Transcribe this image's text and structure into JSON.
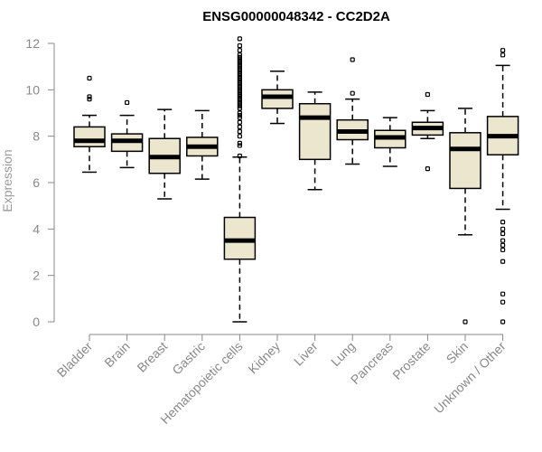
{
  "chart_data": {
    "type": "boxplot",
    "title": "ENSG00000048342 - CC2D2A",
    "ylabel": "Expression",
    "xlabel": "",
    "ylim": [
      0,
      12
    ],
    "yticks": [
      0,
      2,
      4,
      6,
      8,
      10,
      12
    ],
    "box_fill": "#ede6cf",
    "series": [
      {
        "name": "Bladder",
        "min": 6.45,
        "q1": 7.55,
        "median": 7.8,
        "q3": 8.4,
        "max": 8.9,
        "outliers": [
          9.6,
          9.7,
          10.5
        ]
      },
      {
        "name": "Brain",
        "min": 6.65,
        "q1": 7.35,
        "median": 7.8,
        "q3": 8.1,
        "max": 8.9,
        "outliers": [
          9.45
        ]
      },
      {
        "name": "Breast",
        "min": 5.3,
        "q1": 6.4,
        "median": 7.1,
        "q3": 7.9,
        "max": 9.15,
        "outliers": []
      },
      {
        "name": "Gastric",
        "min": 6.15,
        "q1": 7.15,
        "median": 7.55,
        "q3": 7.95,
        "max": 9.1,
        "outliers": []
      },
      {
        "name": "Hematopoietic cells",
        "min": 0.0,
        "q1": 2.7,
        "median": 3.5,
        "q3": 4.5,
        "max": 7.1,
        "outliers": [
          7.15,
          7.6,
          7.7,
          8.0,
          8.2,
          8.4,
          8.6,
          8.8,
          8.9,
          9.0,
          9.2,
          9.3,
          9.4,
          9.5,
          9.6,
          9.7,
          9.8,
          9.9,
          10.0,
          10.1,
          10.2,
          10.3,
          10.4,
          10.5,
          10.6,
          10.7,
          10.8,
          10.9,
          11.0,
          11.1,
          11.2,
          11.3,
          11.4,
          11.5,
          11.7,
          11.9,
          12.2
        ]
      },
      {
        "name": "Kidney",
        "min": 8.55,
        "q1": 9.2,
        "median": 9.7,
        "q3": 10.0,
        "max": 10.8,
        "outliers": []
      },
      {
        "name": "Liver",
        "min": 5.7,
        "q1": 7.0,
        "median": 8.8,
        "q3": 9.4,
        "max": 9.9,
        "outliers": []
      },
      {
        "name": "Lung",
        "min": 6.8,
        "q1": 7.85,
        "median": 8.2,
        "q3": 8.7,
        "max": 9.6,
        "outliers": [
          9.85,
          11.3
        ]
      },
      {
        "name": "Pancreas",
        "min": 6.7,
        "q1": 7.5,
        "median": 7.95,
        "q3": 8.25,
        "max": 8.8,
        "outliers": []
      },
      {
        "name": "Prostate",
        "min": 7.9,
        "q1": 8.05,
        "median": 8.35,
        "q3": 8.6,
        "max": 9.1,
        "outliers": [
          6.6,
          9.8
        ]
      },
      {
        "name": "Skin",
        "min": 3.75,
        "q1": 5.75,
        "median": 7.45,
        "q3": 8.15,
        "max": 9.2,
        "outliers": [
          0.0
        ]
      },
      {
        "name": "Unknown / Other",
        "min": 4.85,
        "q1": 7.2,
        "median": 8.0,
        "q3": 8.85,
        "max": 11.05,
        "outliers": [
          0.0,
          0.85,
          1.2,
          2.6,
          3.1,
          3.3,
          3.5,
          3.8,
          4.0,
          4.3,
          11.5,
          11.7
        ]
      }
    ]
  }
}
